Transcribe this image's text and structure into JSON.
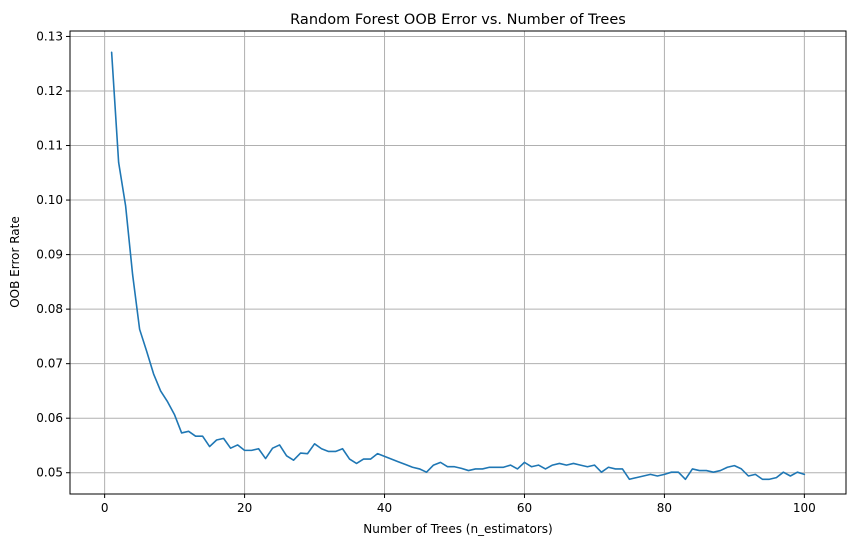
{
  "chart_data": {
    "type": "line",
    "title": "Random Forest OOB Error vs. Number of Trees",
    "xlabel": "Number of Trees (n_estimators)",
    "ylabel": "OOB Error Rate",
    "xlim": [
      -4.95,
      105.95
    ],
    "ylim": [
      0.0461,
      0.131
    ],
    "xticks": [
      0,
      20,
      40,
      60,
      80,
      100
    ],
    "xtick_labels": [
      "0",
      "20",
      "40",
      "60",
      "80",
      "100"
    ],
    "yticks": [
      0.05,
      0.06,
      0.07,
      0.08,
      0.09,
      0.1,
      0.11,
      0.12,
      0.13
    ],
    "ytick_labels": [
      "0.05",
      "0.06",
      "0.07",
      "0.08",
      "0.09",
      "0.10",
      "0.11",
      "0.12",
      "0.13"
    ],
    "grid": true,
    "legend": "none",
    "series": [
      {
        "color": "#1f77b4",
        "x": [
          1,
          2,
          3,
          4,
          5,
          6,
          7,
          8,
          9,
          10,
          11,
          12,
          13,
          14,
          15,
          16,
          17,
          18,
          19,
          20,
          21,
          22,
          23,
          24,
          25,
          26,
          27,
          28,
          29,
          30,
          31,
          32,
          33,
          34,
          35,
          36,
          37,
          38,
          39,
          40,
          41,
          42,
          43,
          44,
          45,
          46,
          47,
          48,
          49,
          50,
          51,
          52,
          53,
          54,
          55,
          56,
          57,
          58,
          59,
          60,
          61,
          62,
          63,
          64,
          65,
          66,
          67,
          68,
          69,
          70,
          71,
          72,
          73,
          74,
          75,
          76,
          77,
          78,
          79,
          80,
          81,
          82,
          83,
          84,
          85,
          86,
          87,
          88,
          89,
          90,
          91,
          92,
          93,
          94,
          95,
          96,
          97,
          98,
          99,
          100
        ],
        "y": [
          0.1271,
          0.1069,
          0.0989,
          0.0863,
          0.0763,
          0.0723,
          0.0681,
          0.065,
          0.063,
          0.0606,
          0.0573,
          0.0576,
          0.0567,
          0.0567,
          0.0548,
          0.056,
          0.0563,
          0.0545,
          0.0551,
          0.0541,
          0.0541,
          0.0544,
          0.0526,
          0.0545,
          0.0551,
          0.0531,
          0.0523,
          0.0536,
          0.0535,
          0.0553,
          0.0544,
          0.0539,
          0.0539,
          0.0544,
          0.0525,
          0.0517,
          0.0525,
          0.0525,
          0.0535,
          0.053,
          0.0525,
          0.052,
          0.0515,
          0.051,
          0.0507,
          0.0501,
          0.0514,
          0.0519,
          0.0511,
          0.0511,
          0.0508,
          0.0504,
          0.0507,
          0.0507,
          0.051,
          0.051,
          0.051,
          0.0514,
          0.0507,
          0.0519,
          0.0511,
          0.0514,
          0.0507,
          0.0514,
          0.0517,
          0.0514,
          0.0517,
          0.0514,
          0.0511,
          0.0514,
          0.0501,
          0.051,
          0.0507,
          0.0507,
          0.0488,
          0.0491,
          0.0494,
          0.0497,
          0.0494,
          0.0497,
          0.0501,
          0.0501,
          0.0488,
          0.0507,
          0.0504,
          0.0504,
          0.0501,
          0.0504,
          0.051,
          0.0513,
          0.0507,
          0.0494,
          0.0497,
          0.0488,
          0.0488,
          0.0491,
          0.0501,
          0.0494,
          0.0501,
          0.0497
        ]
      }
    ]
  }
}
